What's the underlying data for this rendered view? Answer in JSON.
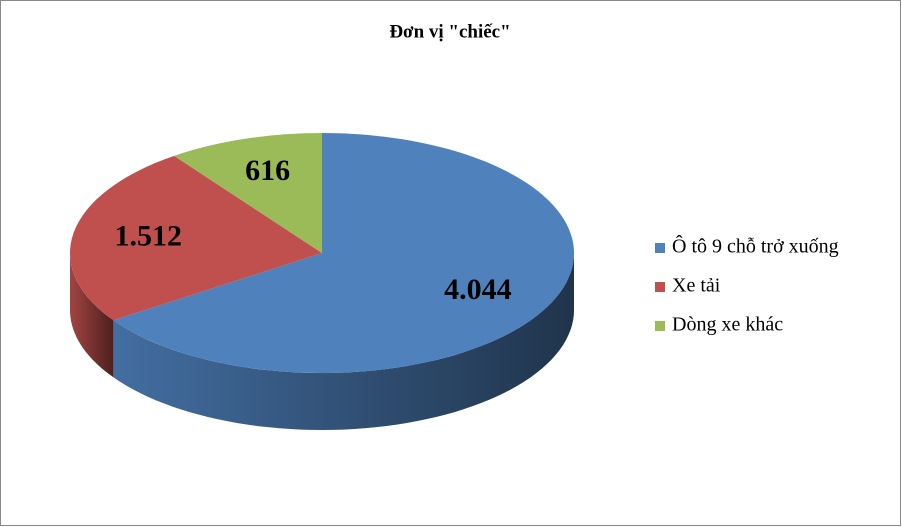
{
  "chart_data": {
    "type": "pie3d",
    "title": "Đơn vị \"chiếc\"",
    "series": [
      {
        "name": "Ô tô 9 chỗ trở xuống",
        "color": "#4f81bd",
        "values": [
          4044
        ],
        "value_labels": [
          "4.044"
        ]
      },
      {
        "name": "Xe tải",
        "color": "#c0504d",
        "values": [
          1512
        ],
        "value_labels": [
          "1.512"
        ]
      },
      {
        "name": "Dòng xe khác",
        "color": "#9bbb59",
        "values": [
          616
        ],
        "value_labels": [
          "616"
        ]
      }
    ],
    "legend": "right"
  }
}
